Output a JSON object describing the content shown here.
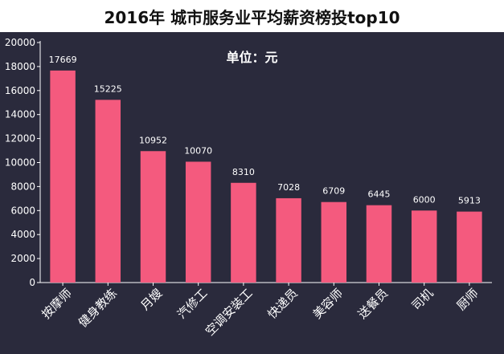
{
  "title": "2016年 城市服务业平均薪资榜投top10",
  "unit_label": "单位：元",
  "colors": {
    "background": "#2a2a3c",
    "bar": "#f45a7e",
    "axis": "#ffffff",
    "text": "#ffffff"
  },
  "chart_data": {
    "type": "bar",
    "title": "2016年 城市服务业平均薪资榜投top10",
    "xlabel": "",
    "ylabel": "",
    "categories": [
      "按摩师",
      "健身教练",
      "月嫂",
      "汽修工",
      "空调安装工",
      "快递员",
      "美容师",
      "送餐员",
      "司机",
      "厨师"
    ],
    "values": [
      17669,
      15225,
      10952,
      10070,
      8310,
      7028,
      6709,
      6445,
      6000,
      5913
    ],
    "yticks": [
      0,
      2000,
      4000,
      6000,
      8000,
      10000,
      12000,
      14000,
      16000,
      18000,
      20000
    ],
    "ylim": [
      0,
      20000
    ],
    "grid": false,
    "legend": "none"
  }
}
